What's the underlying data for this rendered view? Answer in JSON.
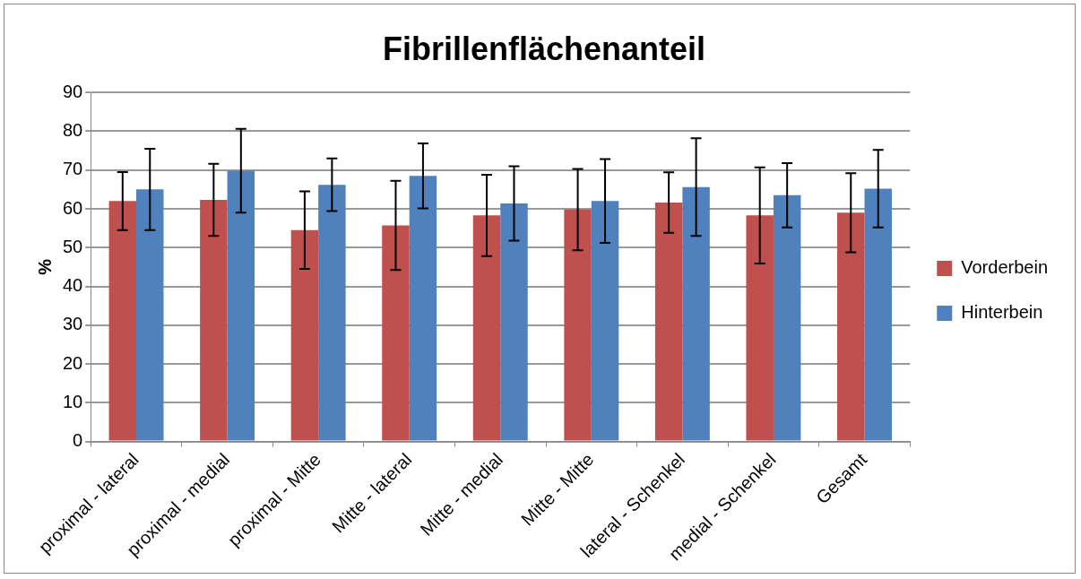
{
  "chart_data": {
    "type": "bar",
    "title": "Fibrillenflächenanteil",
    "ylabel": "%",
    "categories": [
      "proximal - lateral",
      "proximal - medial",
      "proximal - Mitte",
      "Mitte - lateral",
      "Mitte - medial",
      "Mitte - Mitte",
      "lateral - Schenkel",
      "medial - Schenkel",
      "Gesamt"
    ],
    "series": [
      {
        "name": "Vorderbein",
        "color": "#c0504d",
        "values": [
          62,
          62.3,
          54.5,
          55.7,
          58.3,
          59.8,
          61.6,
          58.3,
          59
        ],
        "errors": [
          7.5,
          9.3,
          10,
          11.5,
          10.5,
          10.5,
          7.8,
          12.4,
          10.2
        ]
      },
      {
        "name": "Hinterbein",
        "color": "#4f81bd",
        "values": [
          65,
          69.8,
          66.2,
          68.5,
          61.4,
          62,
          65.6,
          63.5,
          65.2
        ],
        "errors": [
          10.5,
          10.8,
          6.8,
          8.4,
          9.6,
          10.8,
          12.6,
          8.3,
          10
        ]
      }
    ],
    "ylim": [
      0,
      90
    ],
    "yticks": [
      0,
      10,
      20,
      30,
      40,
      50,
      60,
      70,
      80,
      90
    ],
    "grid": "y",
    "legend": "right"
  }
}
